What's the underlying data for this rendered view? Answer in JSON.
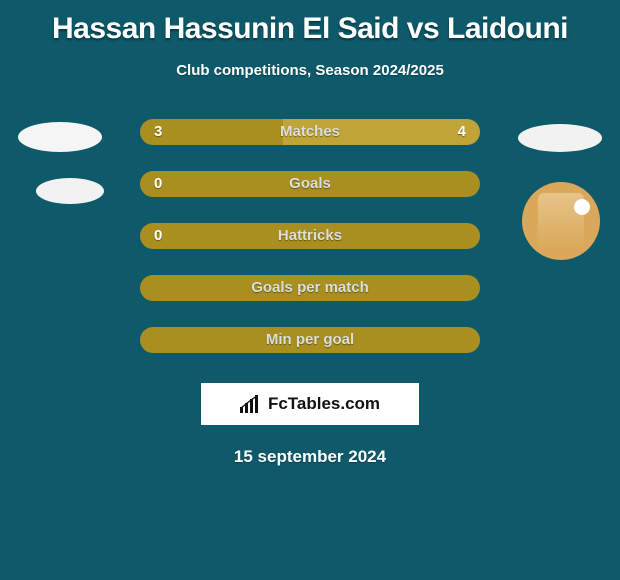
{
  "title": "Hassan Hassunin El Said vs Laidouni",
  "subtitle": "Club competitions, Season 2024/2025",
  "date": "15 september 2024",
  "fctables_label": "FcTables.com",
  "colors": {
    "background": "#0e5a6a",
    "bar_left": "#a88f1f",
    "bar_right": "#b6972c",
    "bar_single": "#a88f1f",
    "label_text": "#d9dee0",
    "white": "#ffffff"
  },
  "stats": [
    {
      "label": "Matches",
      "left_val": "3",
      "right_val": "4",
      "left_pct": 42,
      "right_pct": 58,
      "left_color": "#a88f1f",
      "right_color": "#c0a437",
      "show_vals": true
    },
    {
      "label": "Goals",
      "left_val": "0",
      "right_val": "",
      "left_pct": 100,
      "right_pct": 0,
      "left_color": "#a88f1f",
      "right_color": "#a88f1f",
      "show_vals": true
    },
    {
      "label": "Hattricks",
      "left_val": "0",
      "right_val": "",
      "left_pct": 100,
      "right_pct": 0,
      "left_color": "#a88f1f",
      "right_color": "#a88f1f",
      "show_vals": true
    },
    {
      "label": "Goals per match",
      "left_val": "",
      "right_val": "",
      "left_pct": 100,
      "right_pct": 0,
      "left_color": "#a88f1f",
      "right_color": "#a88f1f",
      "show_vals": false
    },
    {
      "label": "Min per goal",
      "left_val": "",
      "right_val": "",
      "left_pct": 100,
      "right_pct": 0,
      "left_color": "#a88f1f",
      "right_color": "#a88f1f",
      "show_vals": false
    }
  ]
}
